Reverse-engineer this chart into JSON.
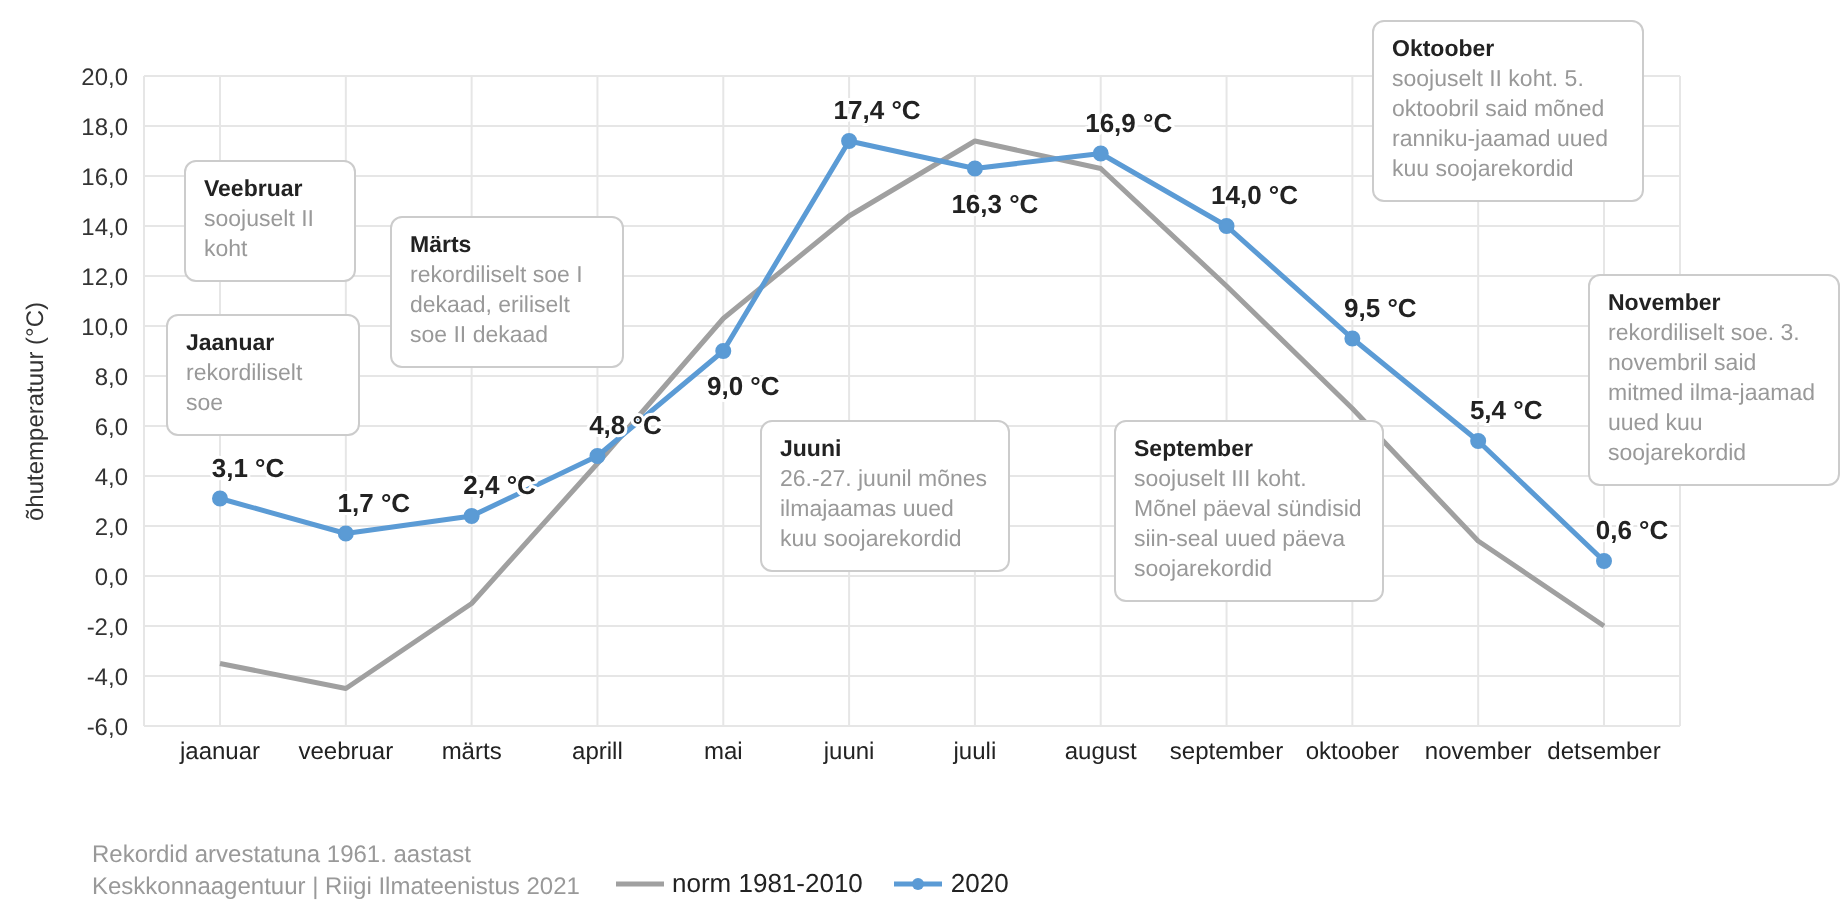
{
  "chart_data": {
    "type": "line",
    "ylabel": "õhutemperatuur (°C)",
    "categories": [
      "jaanuar",
      "veebruar",
      "märts",
      "aprill",
      "mai",
      "juuni",
      "juuli",
      "august",
      "september",
      "oktoober",
      "november",
      "detsember"
    ],
    "series": [
      {
        "name": "norm 1981-2010",
        "color": "#a0a0a0",
        "marker": "none",
        "values": [
          -3.5,
          -4.5,
          -1.1,
          4.5,
          10.3,
          14.4,
          17.4,
          16.3,
          11.6,
          6.7,
          1.4,
          -2.0
        ]
      },
      {
        "name": "2020",
        "color": "#5b9bd5",
        "marker": "circle",
        "values": [
          3.1,
          1.7,
          2.4,
          4.8,
          9.0,
          17.4,
          16.3,
          16.9,
          14.0,
          9.5,
          5.4,
          0.6
        ],
        "value_labels": [
          "3,1 °C",
          "1,7 °C",
          "2,4 °C",
          "4,8 °C",
          "9,0 °C",
          "17,4 °C",
          "16,3 °C",
          "16,9 °C",
          "14,0 °C",
          "9,5 °C",
          "5,4 °C",
          "0,6 °C"
        ]
      }
    ],
    "ylim": [
      -6,
      20
    ],
    "yticks": [
      {
        "value": -6,
        "label": "-6,0"
      },
      {
        "value": -4,
        "label": "-4,0"
      },
      {
        "value": -2,
        "label": "-2,0"
      },
      {
        "value": 0,
        "label": "0,0"
      },
      {
        "value": 2,
        "label": "2,0"
      },
      {
        "value": 4,
        "label": "4,0"
      },
      {
        "value": 6,
        "label": "6,0"
      },
      {
        "value": 8,
        "label": "8,0"
      },
      {
        "value": 10,
        "label": "10,0"
      },
      {
        "value": 12,
        "label": "12,0"
      },
      {
        "value": 14,
        "label": "14,0"
      },
      {
        "value": 16,
        "label": "16,0"
      },
      {
        "value": 18,
        "label": "18,0"
      },
      {
        "value": 20,
        "label": "20,0"
      }
    ],
    "grid": true,
    "legend": "bottom",
    "line_style": "solid",
    "annotations": [
      "Veebruar soojuselt II koht",
      "Jaanuar rekordiliselt soe",
      "Märts rekordiliselt soe I dekaad, eriliselt soe II dekaad",
      "Juuni 26.-27. juunil mõnes ilmajaamas uued kuu soojarekordid",
      "September soojuselt III koht. Mõnel päeval sündisid siin-seal uued päeva soojarekordid",
      "Oktoober soojuselt II koht. 5. oktoobril said mõned ranniku-jaamad uued kuu soojarekordid",
      "November rekordiliselt soe. 3. novembril said mitmed ilma-jaamad uued kuu soojarekordid",
      "Rekordid arvestatuna 1961. aastast",
      "Keskkonnaagentuur | Riigi Ilmateenistus 2021"
    ]
  }
}
